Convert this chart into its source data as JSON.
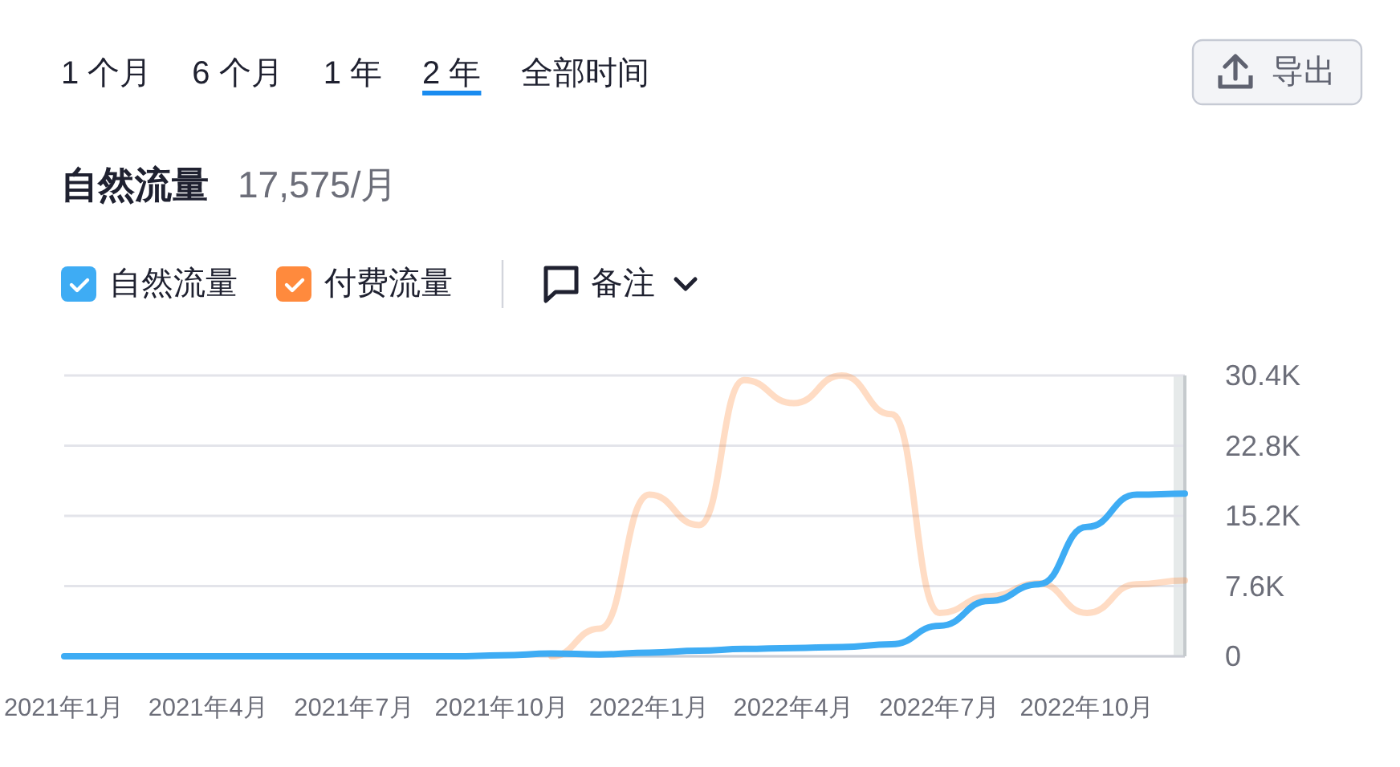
{
  "chart_data": {
    "type": "line",
    "title": "自然流量",
    "subtitle": "17,575/月",
    "annotations": [
      "1 个月",
      "6 个月",
      "1 年",
      "2 年",
      "全部时间",
      "导出",
      "备注"
    ],
    "x": [
      "2021-01",
      "2021-02",
      "2021-03",
      "2021-04",
      "2021-05",
      "2021-06",
      "2021-07",
      "2021-08",
      "2021-09",
      "2021-10",
      "2021-11",
      "2021-12",
      "2022-01",
      "2022-02",
      "2022-03",
      "2022-04",
      "2022-05",
      "2022-06",
      "2022-07",
      "2022-08",
      "2022-09",
      "2022-10",
      "2022-11",
      "2022-12"
    ],
    "series": [
      {
        "name": "自然流量",
        "color": "#3eacf4",
        "values": [
          0,
          0,
          0,
          0,
          0,
          0,
          0,
          0,
          0,
          100,
          300,
          200,
          400,
          600,
          800,
          900,
          1000,
          1300,
          3300,
          6000,
          7800,
          14000,
          17500,
          17600
        ]
      },
      {
        "name": "付费流量",
        "color": "#ff8a3d",
        "values": [
          null,
          null,
          null,
          null,
          null,
          null,
          null,
          null,
          null,
          null,
          0,
          3000,
          17500,
          14200,
          29900,
          27400,
          30400,
          26200,
          4700,
          6500,
          7900,
          4700,
          7800,
          8200
        ]
      }
    ],
    "xlim": [
      "2021-01",
      "2022-12"
    ],
    "xticks": [
      {
        "value": "2021-01",
        "label": "2021年1月"
      },
      {
        "value": "2021-04",
        "label": "2021年4月"
      },
      {
        "value": "2021-07",
        "label": "2021年7月"
      },
      {
        "value": "2021-10",
        "label": "2021年10月"
      },
      {
        "value": "2022-01",
        "label": "2022年1月"
      },
      {
        "value": "2022-04",
        "label": "2022年4月"
      },
      {
        "value": "2022-07",
        "label": "2022年7月"
      },
      {
        "value": "2022-10",
        "label": "2022年10月"
      }
    ],
    "ylim": [
      0,
      30400
    ],
    "yticks": [
      0,
      {
        "value": 7600,
        "label": "7.6K"
      },
      {
        "value": 15200,
        "label": "15.2K"
      },
      {
        "value": 22800,
        "label": "22.8K"
      },
      {
        "value": 30400,
        "label": "30.4K"
      }
    ],
    "bands": [
      {
        "axis": "x",
        "from": "2022-11-24",
        "to": "2022-12",
        "color": "#e6eaea"
      }
    ],
    "grid": "y",
    "legend": "top left"
  }
}
